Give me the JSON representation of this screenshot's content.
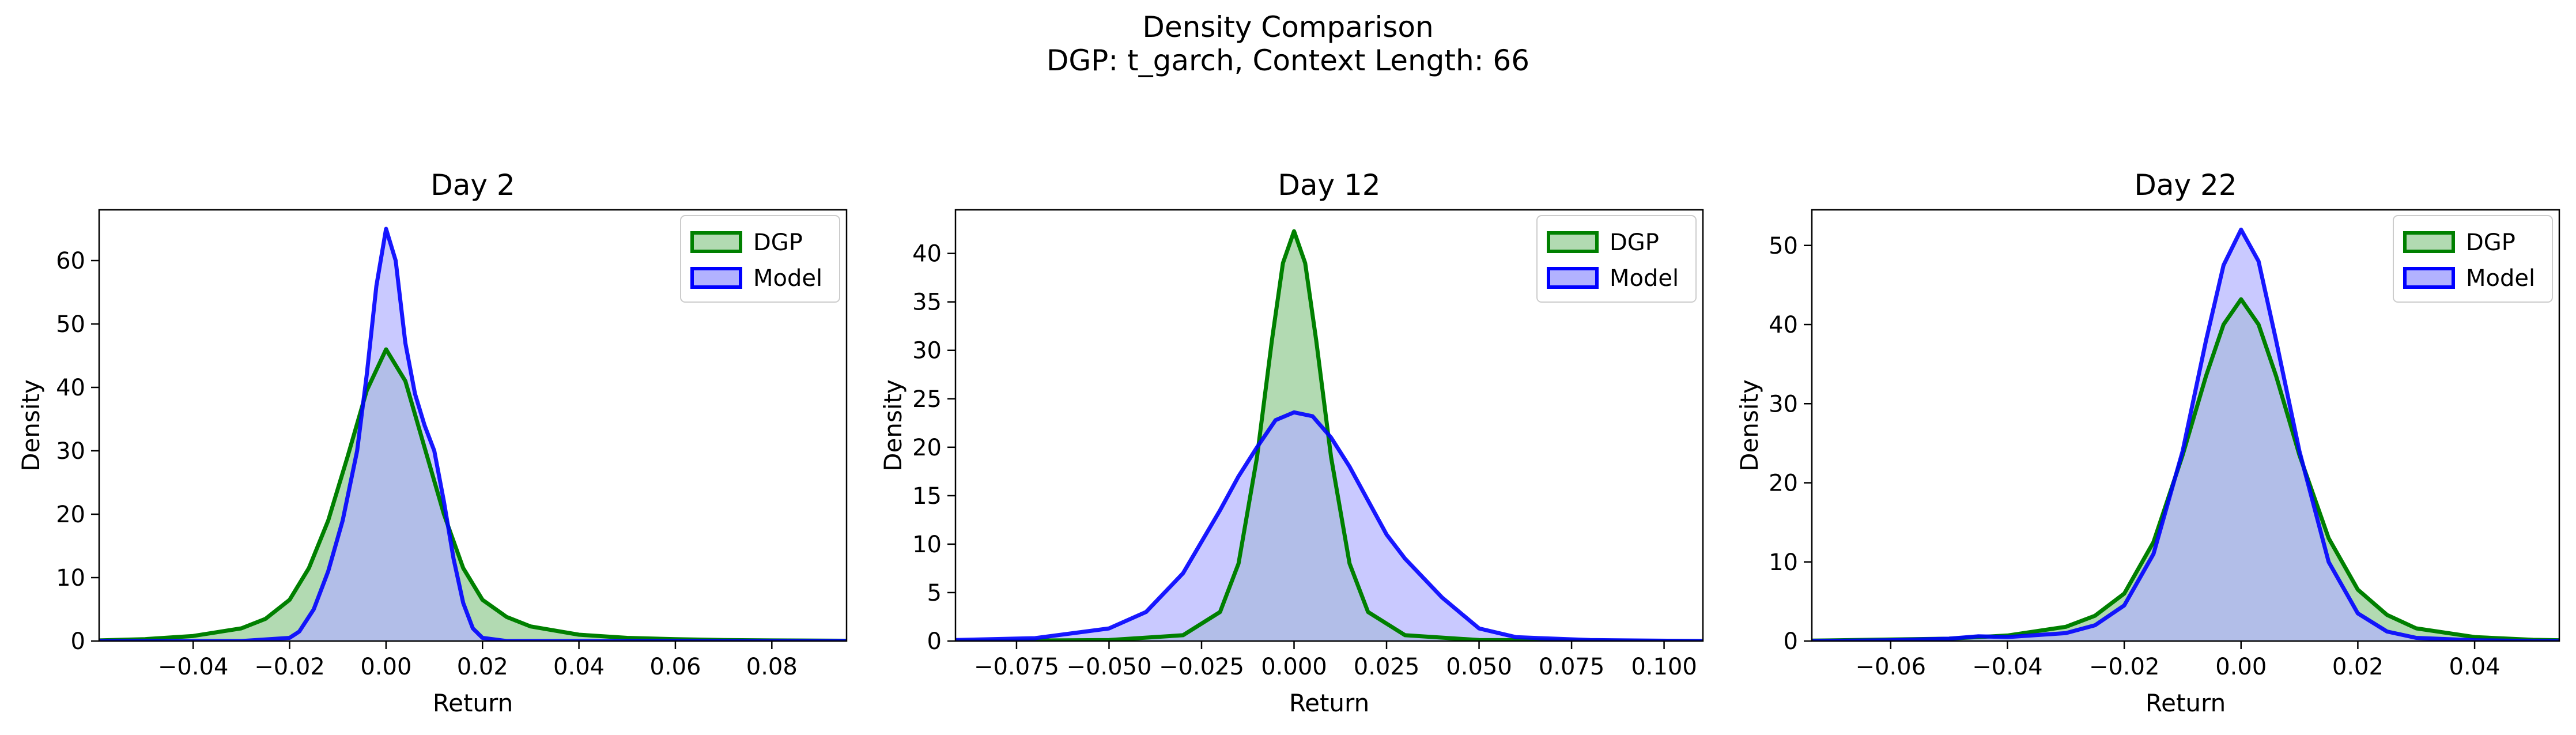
{
  "figure": {
    "suptitle_line1": "Density Comparison",
    "suptitle_line2": "DGP: t_garch, Context Length: 66"
  },
  "colors": {
    "dgp_line": "#008000",
    "dgp_fill": "#b2dab2",
    "model_line": "#0000ff",
    "model_fill": "#b2b2ff",
    "overlap_fill": "#7f99c9",
    "overlap_line": "#0e5a5a"
  },
  "chart_data": [
    {
      "type": "area",
      "title": "Day 2",
      "xlabel": "Return",
      "ylabel": "Density",
      "xlim": [
        -0.0595,
        0.0955
      ],
      "ylim": [
        0,
        68
      ],
      "xticks": [
        -0.04,
        -0.02,
        0.0,
        0.02,
        0.04,
        0.06,
        0.08
      ],
      "xtick_labels": [
        "−0.04",
        "−0.02",
        "0.00",
        "0.02",
        "0.04",
        "0.06",
        "0.08"
      ],
      "yticks": [
        0,
        10,
        20,
        30,
        40,
        50,
        60
      ],
      "ytick_labels": [
        "0",
        "10",
        "20",
        "30",
        "40",
        "50",
        "60"
      ],
      "legend": {
        "position": "upper right",
        "entries": [
          "DGP",
          "Model"
        ]
      },
      "series": [
        {
          "name": "DGP",
          "x": [
            -0.0595,
            -0.05,
            -0.04,
            -0.03,
            -0.025,
            -0.02,
            -0.016,
            -0.012,
            -0.008,
            -0.004,
            0.0,
            0.004,
            0.008,
            0.012,
            0.016,
            0.02,
            0.025,
            0.03,
            0.04,
            0.05,
            0.06,
            0.07,
            0.08,
            0.0955
          ],
          "y": [
            0.1,
            0.3,
            0.8,
            2.0,
            3.5,
            6.5,
            11.5,
            19.0,
            29.0,
            39.5,
            46.0,
            41.0,
            30.5,
            20.0,
            11.5,
            6.5,
            3.8,
            2.3,
            1.0,
            0.5,
            0.3,
            0.15,
            0.1,
            0.05
          ]
        },
        {
          "name": "Model",
          "x": [
            -0.0595,
            -0.03,
            -0.02,
            -0.018,
            -0.015,
            -0.012,
            -0.009,
            -0.006,
            -0.004,
            -0.002,
            0.0,
            0.002,
            0.004,
            0.006,
            0.008,
            0.01,
            0.012,
            0.014,
            0.016,
            0.018,
            0.02,
            0.025,
            0.0955
          ],
          "y": [
            0,
            0,
            0.5,
            1.5,
            5.0,
            11.0,
            19.0,
            30.0,
            42.0,
            56.0,
            65.0,
            60.0,
            47.0,
            39.0,
            34.0,
            30.0,
            22.0,
            13.0,
            6.0,
            2.0,
            0.5,
            0,
            0
          ]
        }
      ]
    },
    {
      "type": "area",
      "title": "Day 12",
      "xlabel": "Return",
      "ylabel": "Density",
      "xlim": [
        -0.0915,
        0.1105
      ],
      "ylim": [
        0,
        44.5
      ],
      "xticks": [
        -0.075,
        -0.05,
        -0.025,
        0.0,
        0.025,
        0.05,
        0.075,
        0.1
      ],
      "xtick_labels": [
        "−0.075",
        "−0.050",
        "−0.025",
        "0.000",
        "0.025",
        "0.050",
        "0.075",
        "0.100"
      ],
      "yticks": [
        0,
        5,
        10,
        15,
        20,
        25,
        30,
        35,
        40
      ],
      "ytick_labels": [
        "0",
        "5",
        "10",
        "15",
        "20",
        "25",
        "30",
        "35",
        "40"
      ],
      "legend": {
        "position": "upper right",
        "entries": [
          "DGP",
          "Model"
        ]
      },
      "series": [
        {
          "name": "DGP",
          "x": [
            -0.0915,
            -0.05,
            -0.03,
            -0.02,
            -0.015,
            -0.01,
            -0.006,
            -0.003,
            0.0,
            0.003,
            0.006,
            0.01,
            0.015,
            0.02,
            0.03,
            0.05,
            0.1105
          ],
          "y": [
            0,
            0.1,
            0.6,
            3.0,
            8.0,
            19.0,
            31.0,
            39.0,
            42.3,
            39.0,
            31.0,
            19.0,
            8.0,
            3.0,
            0.6,
            0.1,
            0
          ]
        },
        {
          "name": "Model",
          "x": [
            -0.0915,
            -0.07,
            -0.05,
            -0.04,
            -0.03,
            -0.02,
            -0.015,
            -0.01,
            -0.005,
            0.0,
            0.005,
            0.01,
            0.015,
            0.02,
            0.025,
            0.03,
            0.04,
            0.05,
            0.06,
            0.08,
            0.1105
          ],
          "y": [
            0.1,
            0.3,
            1.3,
            3.0,
            7.0,
            13.5,
            17.0,
            20.0,
            22.8,
            23.6,
            23.2,
            21.0,
            18.0,
            14.5,
            11.0,
            8.5,
            4.5,
            1.3,
            0.4,
            0.1,
            0
          ]
        }
      ]
    },
    {
      "type": "area",
      "title": "Day 22",
      "xlabel": "Return",
      "ylabel": "Density",
      "xlim": [
        -0.0735,
        0.0545
      ],
      "ylim": [
        0,
        54.5
      ],
      "xticks": [
        -0.06,
        -0.04,
        -0.02,
        0.0,
        0.02,
        0.04
      ],
      "xtick_labels": [
        "−0.06",
        "−0.04",
        "−0.02",
        "0.00",
        "0.02",
        "0.04"
      ],
      "yticks": [
        0,
        10,
        20,
        30,
        40,
        50
      ],
      "ytick_labels": [
        "0",
        "10",
        "20",
        "30",
        "40",
        "50"
      ],
      "legend": {
        "position": "upper right",
        "entries": [
          "DGP",
          "Model"
        ]
      },
      "series": [
        {
          "name": "DGP",
          "x": [
            -0.0735,
            -0.05,
            -0.04,
            -0.03,
            -0.025,
            -0.02,
            -0.015,
            -0.01,
            -0.006,
            -0.003,
            0.0,
            0.003,
            0.006,
            0.01,
            0.015,
            0.02,
            0.025,
            0.03,
            0.04,
            0.05,
            0.0545
          ],
          "y": [
            0.05,
            0.3,
            0.7,
            1.8,
            3.2,
            6.0,
            12.5,
            23.5,
            33.5,
            40.0,
            43.2,
            40.0,
            33.5,
            23.5,
            13.0,
            6.5,
            3.3,
            1.6,
            0.5,
            0.15,
            0.1
          ]
        },
        {
          "name": "Model",
          "x": [
            -0.0735,
            -0.06,
            -0.05,
            -0.045,
            -0.04,
            -0.03,
            -0.025,
            -0.02,
            -0.015,
            -0.01,
            -0.006,
            -0.003,
            0.0,
            0.003,
            0.006,
            0.01,
            0.015,
            0.02,
            0.025,
            0.03,
            0.04,
            0.05,
            0.0545
          ],
          "y": [
            0,
            0.1,
            0.3,
            0.6,
            0.5,
            1.0,
            2.0,
            4.5,
            11.0,
            24.0,
            38.0,
            47.5,
            52.0,
            48.0,
            38.0,
            24.0,
            10.0,
            3.5,
            1.2,
            0.4,
            0.1,
            0,
            0
          ]
        }
      ]
    }
  ]
}
